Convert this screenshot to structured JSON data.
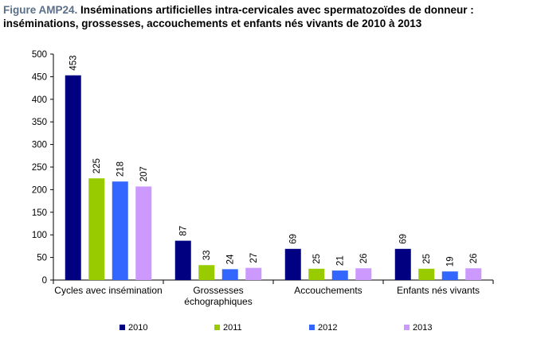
{
  "figure": {
    "prefix": "Figure AMP24.",
    "title_line1": " Inséminations artificielles intra-cervicales avec spermatozoïdes de donneur :",
    "title_line2": "inséminations, grossesses, accouchements et enfants nés vivants de 2010 à 2013"
  },
  "chart_data": {
    "type": "bar",
    "title": "Inséminations artificielles intra-cervicales avec spermatozoïdes de donneur : inséminations, grossesses, accouchements et enfants nés vivants de 2010 à 2013",
    "categories": [
      [
        "Cycles avec insémination"
      ],
      [
        "Grossesses",
        "échographiques"
      ],
      [
        "Accouchements"
      ],
      [
        "Enfants nés vivants"
      ]
    ],
    "series": [
      {
        "name": "2010",
        "color": "#000080",
        "values": [
          453,
          87,
          69,
          69
        ]
      },
      {
        "name": "2011",
        "color": "#99cc00",
        "values": [
          225,
          33,
          25,
          25
        ]
      },
      {
        "name": "2012",
        "color": "#3366ff",
        "values": [
          218,
          24,
          21,
          19
        ]
      },
      {
        "name": "2013",
        "color": "#cc99ff",
        "values": [
          207,
          27,
          26,
          26
        ]
      }
    ],
    "ylim": [
      0,
      500
    ],
    "yticks": [
      0,
      50,
      100,
      150,
      200,
      250,
      300,
      350,
      400,
      450,
      500
    ],
    "xlabel": "",
    "ylabel": "",
    "grid": false,
    "legend": "bottom",
    "data_labels": "vertical-above-bars"
  }
}
